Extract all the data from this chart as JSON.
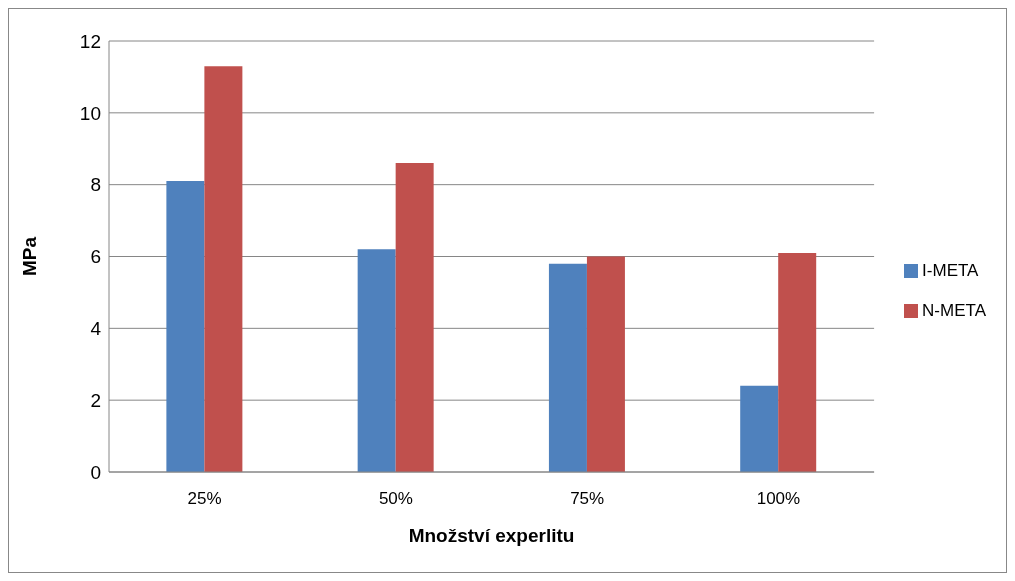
{
  "chart_data": {
    "type": "bar",
    "xlabel": "Množství experlitu",
    "ylabel": "MPa",
    "categories": [
      "25%",
      "50%",
      "75%",
      "100%"
    ],
    "series": [
      {
        "name": "I-META",
        "color": "#4f81bd",
        "values": [
          8.1,
          6.2,
          5.8,
          2.4
        ]
      },
      {
        "name": "N-META",
        "color": "#c0504d",
        "values": [
          11.3,
          8.6,
          6.0,
          6.1
        ]
      }
    ],
    "ylim": [
      0,
      12
    ],
    "yticks": [
      0,
      2,
      4,
      6,
      8,
      10,
      12
    ],
    "grid": "y",
    "legend": "right"
  }
}
